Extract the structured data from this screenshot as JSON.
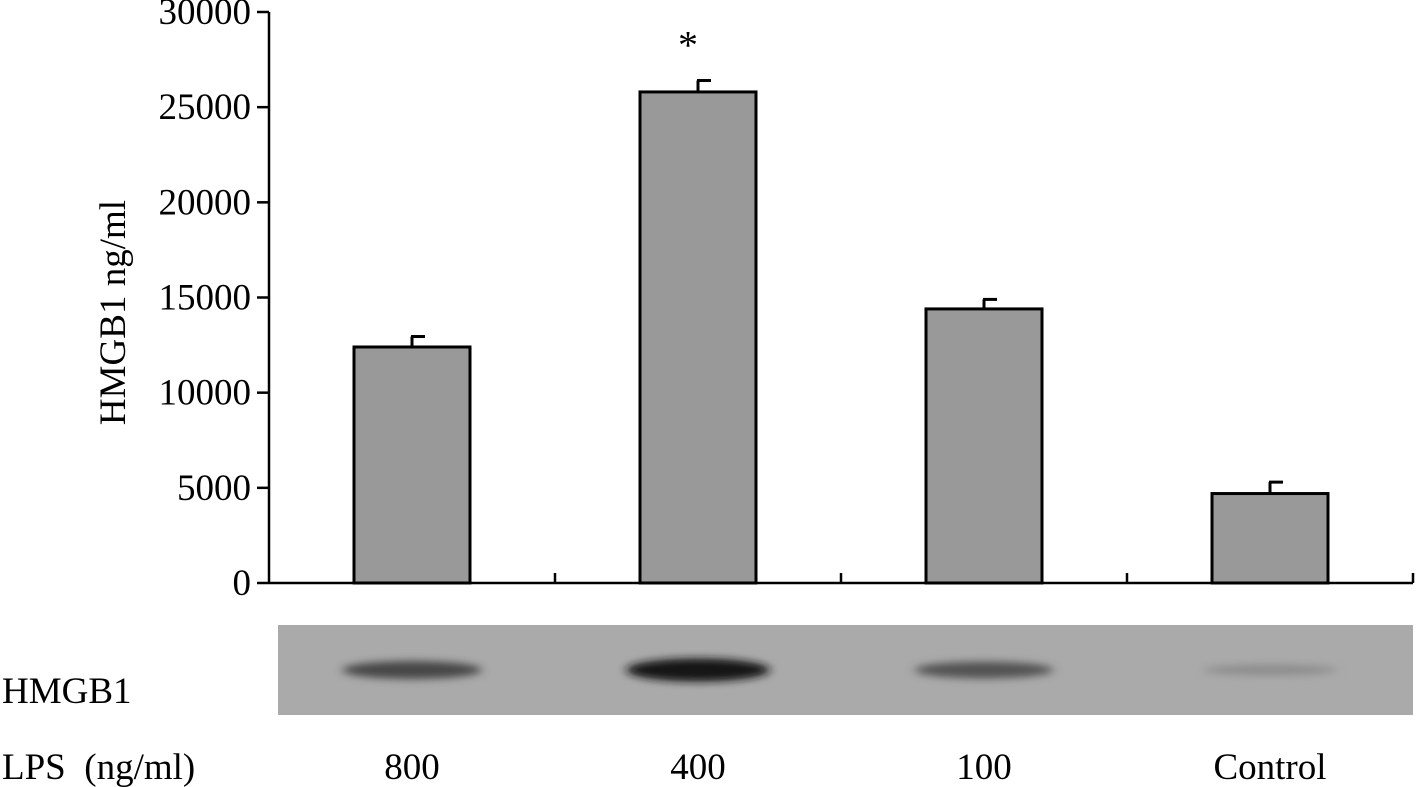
{
  "chart_data": {
    "type": "bar",
    "categories": [
      "800",
      "400",
      "100",
      "Control"
    ],
    "values": [
      12400,
      25800,
      14400,
      4700
    ],
    "errors": [
      550,
      600,
      500,
      600
    ],
    "bar_color": "#999999",
    "ylabel": "HMGB1 ng/ml",
    "xlabel": "LPS  (ng/ml)",
    "ylim": [
      0,
      30000
    ],
    "yticks": [
      0,
      5000,
      10000,
      15000,
      20000,
      25000,
      30000
    ],
    "annotations": [
      {
        "category": "400",
        "text": "*"
      }
    ],
    "grid": false
  },
  "blot": {
    "label": "HMGB1",
    "band_intensities": [
      0.62,
      0.95,
      0.55,
      0.18
    ],
    "background_color": "#aaaaaa"
  }
}
